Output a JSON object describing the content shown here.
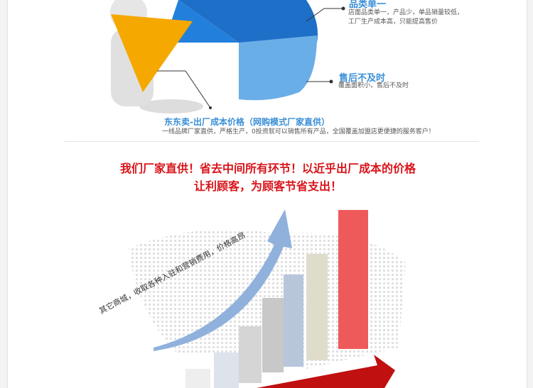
{
  "top_section": {
    "callout_1": {
      "title": "品类单一",
      "lines": [
        "店面品类单一，产品少，单品销量较低，",
        "工厂生产成本高，只能提高售价"
      ]
    },
    "callout_2": {
      "title": "售后不及时",
      "line": "覆盖面积小，售后不及时"
    },
    "headline": "东东卖-出厂成本价格（网购模式厂家直供）",
    "subline": "一线品牌厂家直供，严格生产，0投资就可以销售所有产品，全国覆盖加盟店更便捷的服务客户！"
  },
  "bottom_section": {
    "slogan_line_1": "我们厂家直供！省去中间所有环节！以近乎出厂成本的价格",
    "slogan_line_2": "让利顾客，为顾客节省支出！",
    "arrow_text": "其它商城，收取各种入驻和营销费用，价格高昂"
  },
  "colors": {
    "accent_blue": "#3a8fd6",
    "slogan_red": "#d9141a",
    "pie_orange": "#f5a800"
  }
}
